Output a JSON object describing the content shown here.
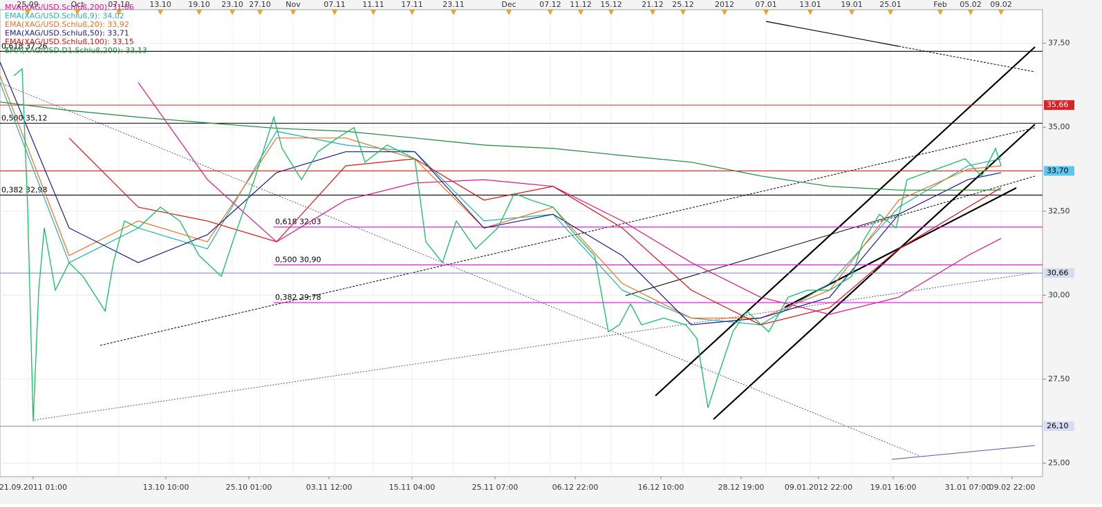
{
  "chart_data": {
    "type": "line",
    "xlim": [
      0,
      377
    ],
    "ylim": [
      24.6,
      38.5
    ],
    "grid": true,
    "yticks": [
      {
        "value": 25,
        "label": "25,00"
      },
      {
        "value": 27.5,
        "label": "27,50"
      },
      {
        "value": 30,
        "label": "30,00"
      },
      {
        "value": 32.5,
        "label": "32,50"
      },
      {
        "value": 35,
        "label": "35,00"
      },
      {
        "value": 37.5,
        "label": "37,50"
      }
    ],
    "top_xticks": [
      {
        "value": 10,
        "label": "25.09"
      },
      {
        "value": 28,
        "label": "Oct"
      },
      {
        "value": 43,
        "label": "07.10"
      },
      {
        "value": 58,
        "label": "13.10"
      },
      {
        "value": 72,
        "label": "19.10"
      },
      {
        "value": 84,
        "label": "23.10"
      },
      {
        "value": 94,
        "label": "27.10"
      },
      {
        "value": 106,
        "label": "Nov"
      },
      {
        "value": 121,
        "label": "07.11"
      },
      {
        "value": 135,
        "label": "11.11"
      },
      {
        "value": 149,
        "label": "17.11"
      },
      {
        "value": 164,
        "label": "23.11"
      },
      {
        "value": 184,
        "label": "Dec"
      },
      {
        "value": 199,
        "label": "07.12"
      },
      {
        "value": 210,
        "label": "11.12"
      },
      {
        "value": 221,
        "label": "15.12"
      },
      {
        "value": 236,
        "label": "21.12"
      },
      {
        "value": 247,
        "label": "25.12"
      },
      {
        "value": 262,
        "label": "2012"
      },
      {
        "value": 277,
        "label": "07.01"
      },
      {
        "value": 293,
        "label": "13.01"
      },
      {
        "value": 308,
        "label": "19.01"
      },
      {
        "value": 322,
        "label": "25.01"
      },
      {
        "value": 340,
        "label": "Feb"
      },
      {
        "value": 351,
        "label": "05.02"
      },
      {
        "value": 362,
        "label": "09.02"
      }
    ],
    "xticks": [
      {
        "value": 12,
        "label": "21.09.2011 01:00"
      },
      {
        "value": 60,
        "label": "13.10 10:00"
      },
      {
        "value": 90,
        "label": "25.10 01:00"
      },
      {
        "value": 119,
        "label": "03.11 12:00"
      },
      {
        "value": 149,
        "label": "15.11 04:00"
      },
      {
        "value": 179,
        "label": "25.11 07:00"
      },
      {
        "value": 208,
        "label": "06.12 22:00"
      },
      {
        "value": 239,
        "label": "16.12 10:00"
      },
      {
        "value": 268,
        "label": "28.12 19:00"
      },
      {
        "value": 296,
        "label": "09.01.2012 22:00"
      },
      {
        "value": 323,
        "label": "19.01 16:00"
      },
      {
        "value": 350,
        "label": "31.01 07:00"
      },
      {
        "value": 366,
        "label": "09.02 22:00"
      }
    ],
    "x": [
      0,
      25,
      50,
      75,
      100,
      125,
      150,
      175,
      200,
      225,
      250,
      275,
      300,
      325,
      350,
      362
    ],
    "series": [
      {
        "name": "MVA(XAG/USD.Schluß,200): 31,66",
        "color": "#e0158c",
        "values": [
          null,
          null,
          36.33,
          33.44,
          31.59,
          32.83,
          33.34,
          33.44,
          33.24,
          32.21,
          30.97,
          29.94,
          29.43,
          29.94,
          31.18,
          31.69
        ]
      },
      {
        "name": "EMA(XAG/USD.Schluß,9): 34,02",
        "color": "#20b0b0",
        "values": [
          36.33,
          30.97,
          32.0,
          31.38,
          34.88,
          34.47,
          34.27,
          32.21,
          32.41,
          30.15,
          29.32,
          29.12,
          30.35,
          32.62,
          33.85,
          34.06
        ]
      },
      {
        "name": "EMA(XAG/USD.Schluß,20): 33,92",
        "color": "#f07020",
        "values": [
          36.53,
          31.18,
          32.21,
          31.59,
          34.68,
          34.68,
          34.06,
          32.0,
          32.62,
          30.35,
          29.32,
          29.32,
          30.15,
          32.83,
          33.75,
          33.85
        ]
      },
      {
        "name": "EMA(XAG/USD.Schluß,50): 33,71",
        "color": "#1a1a8c",
        "values": [
          36.94,
          32.0,
          30.97,
          31.8,
          33.65,
          34.27,
          34.27,
          32.0,
          32.41,
          31.18,
          29.12,
          29.32,
          29.94,
          32.41,
          33.44,
          33.65
        ]
      },
      {
        "name": "EMA(XAG/USD.Schluß,100): 33,15",
        "color": "#e01010",
        "values": [
          null,
          34.68,
          32.62,
          32.21,
          31.59,
          33.85,
          34.06,
          32.83,
          33.24,
          32.0,
          30.15,
          29.12,
          29.63,
          31.38,
          32.62,
          33.2
        ]
      },
      {
        "name": "EMA(XAG/USD.D1.Schluß,200): 33,13",
        "color": "#1a8a3a",
        "values": [
          35.75,
          35.5,
          35.3,
          35.13,
          34.97,
          34.88,
          34.68,
          34.47,
          34.37,
          34.16,
          33.96,
          33.55,
          33.24,
          33.13,
          33.13,
          33.13
        ]
      },
      {
        "color": "#10c060",
        "x": [
          5,
          8,
          10,
          12,
          14,
          16,
          20,
          25,
          30,
          38,
          41,
          45,
          50,
          58,
          65,
          72,
          80,
          85,
          92,
          99,
          102,
          109,
          115,
          122,
          128,
          132,
          140,
          150,
          154,
          160,
          165,
          172,
          180,
          186,
          192,
          200,
          208,
          215,
          220,
          224,
          228,
          232,
          240,
          248,
          252,
          256,
          260,
          265,
          270,
          278,
          285,
          292,
          300,
          308,
          312,
          318,
          324,
          328,
          335,
          342,
          349,
          355,
          360,
          362
        ],
        "values": [
          36.53,
          36.74,
          32.62,
          26.24,
          30.15,
          32.0,
          30.15,
          30.97,
          30.56,
          29.53,
          30.97,
          32.21,
          32.0,
          32.62,
          32.21,
          31.18,
          30.56,
          31.8,
          33.44,
          35.3,
          34.37,
          33.44,
          34.27,
          34.68,
          34.99,
          33.96,
          34.47,
          34.06,
          31.59,
          30.97,
          32.21,
          31.38,
          32.0,
          33.03,
          32.83,
          32.62,
          31.8,
          31.18,
          28.91,
          29.12,
          29.74,
          29.12,
          29.32,
          29.12,
          28.71,
          26.65,
          27.68,
          28.91,
          29.53,
          28.91,
          29.94,
          30.15,
          30.15,
          30.56,
          31.59,
          32.41,
          32.0,
          33.44,
          33.65,
          33.85,
          34.06,
          33.54,
          34.37,
          33.85
        ]
      }
    ],
    "levels": [
      {
        "value": 37.26,
        "label": "0,618 37,26",
        "color": "#000000",
        "from": 0
      },
      {
        "value": 35.12,
        "label": "0,500 35,12",
        "color": "#000000",
        "from": 0
      },
      {
        "value": 32.98,
        "label": "0,382 32,98",
        "color": "#000000",
        "from": 0
      },
      {
        "value": 32.03,
        "label": "0,618 32,03",
        "color": "#ff00ff",
        "from": 99
      },
      {
        "value": 30.9,
        "label": "0,500 30,90",
        "color": "#ff00ff",
        "from": 99
      },
      {
        "value": 29.78,
        "label": "0,382 29,78",
        "color": "#ff00ff",
        "from": 99
      },
      {
        "value": 35.66,
        "value_label": "35,66",
        "color": "#e02020",
        "from": 0
      },
      {
        "value": 33.7,
        "value_label": "33,70",
        "color": "#e02020",
        "from": 0
      },
      {
        "value": 30.66,
        "value_label": "30,66",
        "color": "#8890b8",
        "from": 0
      },
      {
        "value": 26.1,
        "value_label": "26,10",
        "color": "#8890b8",
        "from": 0
      }
    ]
  }
}
